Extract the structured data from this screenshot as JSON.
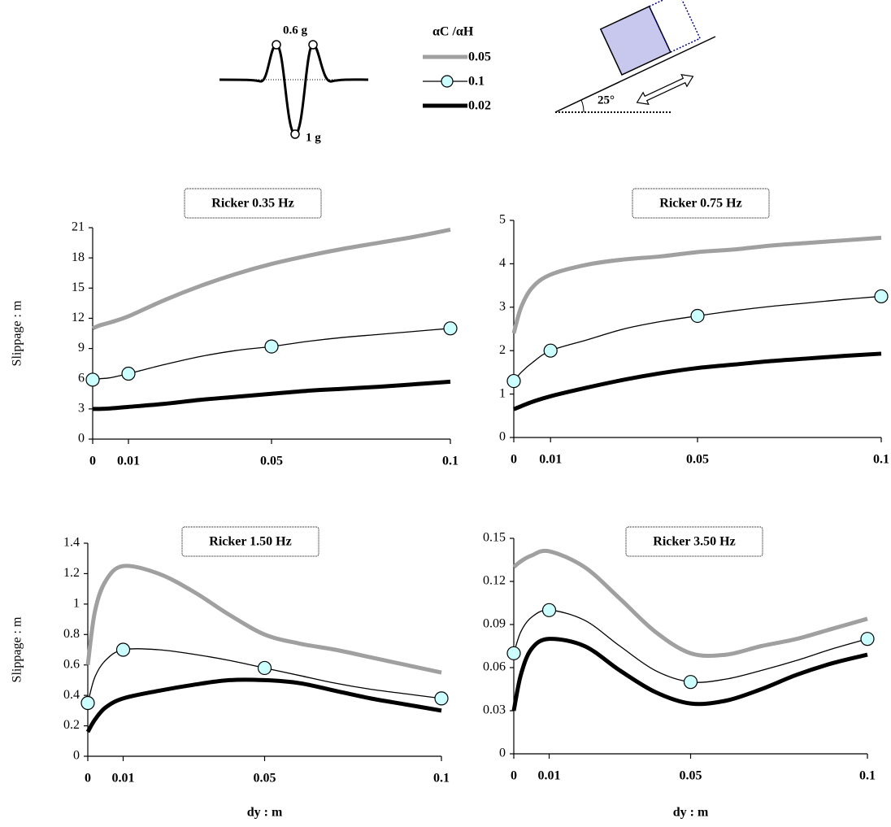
{
  "diagram": {
    "legend_title": "αC /αH",
    "wavelet_peak_label": "0.6 g",
    "wavelet_trough_label": "1 g",
    "slope_angle_label": "25°"
  },
  "chart_data": [
    {
      "type": "line",
      "title": "Ricker  0.35 Hz",
      "ylabel": "Slippage : m",
      "x": [
        0,
        0.002,
        0.005,
        0.01,
        0.02,
        0.03,
        0.04,
        0.05,
        0.06,
        0.07,
        0.08,
        0.09,
        0.1
      ],
      "xlim": [
        0,
        0.1
      ],
      "xticks": [
        0,
        0.01,
        0.05,
        0.1
      ],
      "ylim": [
        0,
        21
      ],
      "yticks": [
        0,
        3,
        6,
        9,
        12,
        15,
        18,
        21
      ],
      "series": [
        {
          "name": "0.05",
          "color": "#a0a0a0",
          "width": 5,
          "values": [
            11,
            11.3,
            11.6,
            12.2,
            13.8,
            15.2,
            16.4,
            17.4,
            18.2,
            18.9,
            19.5,
            20.1,
            20.8
          ]
        },
        {
          "name": "0.1",
          "color": "#000000",
          "width": 1.3,
          "marker": "circle",
          "values": [
            5.9,
            6.0,
            6.1,
            6.5,
            7.4,
            8.2,
            8.8,
            9.2,
            9.7,
            10.1,
            10.4,
            10.7,
            11
          ]
        },
        {
          "name": "0.02",
          "color": "#000000",
          "width": 5,
          "values": [
            3,
            3,
            3.05,
            3.2,
            3.5,
            3.9,
            4.2,
            4.5,
            4.8,
            5.0,
            5.2,
            5.45,
            5.7
          ]
        }
      ]
    },
    {
      "type": "line",
      "title": "Ricker  0.75 Hz",
      "x": [
        0,
        0.002,
        0.005,
        0.01,
        0.02,
        0.03,
        0.04,
        0.05,
        0.06,
        0.07,
        0.08,
        0.09,
        0.1
      ],
      "xlim": [
        0,
        0.1
      ],
      "xticks": [
        0,
        0.01,
        0.05,
        0.1
      ],
      "ylim": [
        0,
        5
      ],
      "yticks": [
        0,
        1,
        2,
        3,
        4,
        5
      ],
      "series": [
        {
          "name": "0.05",
          "color": "#a0a0a0",
          "width": 5,
          "values": [
            2.4,
            3.0,
            3.45,
            3.75,
            3.98,
            4.1,
            4.17,
            4.27,
            4.33,
            4.42,
            4.48,
            4.54,
            4.6
          ]
        },
        {
          "name": "0.1",
          "color": "#000000",
          "width": 1.3,
          "marker": "circle",
          "values": [
            1.3,
            1.5,
            1.72,
            2.0,
            2.25,
            2.5,
            2.67,
            2.8,
            2.92,
            3.02,
            3.1,
            3.18,
            3.25
          ]
        },
        {
          "name": "0.02",
          "color": "#000000",
          "width": 5,
          "values": [
            0.65,
            0.72,
            0.82,
            0.95,
            1.15,
            1.33,
            1.48,
            1.6,
            1.68,
            1.76,
            1.82,
            1.88,
            1.93
          ]
        }
      ]
    },
    {
      "type": "line",
      "title": "Ricker 1.50 Hz",
      "ylabel": "Slippage : m",
      "xlabel": "dy : m",
      "x": [
        0,
        0.002,
        0.005,
        0.01,
        0.02,
        0.03,
        0.04,
        0.05,
        0.06,
        0.07,
        0.08,
        0.09,
        0.1
      ],
      "xlim": [
        0,
        0.1
      ],
      "xticks": [
        0,
        0.01,
        0.05,
        0.1
      ],
      "ylim": [
        0,
        1.4
      ],
      "yticks": [
        0,
        0.2,
        0.4,
        0.6,
        0.8,
        1,
        1.2,
        1.4
      ],
      "series": [
        {
          "name": "0.05",
          "color": "#a0a0a0",
          "width": 5,
          "values": [
            0.6,
            0.95,
            1.15,
            1.25,
            1.2,
            1.08,
            0.93,
            0.8,
            0.74,
            0.7,
            0.65,
            0.6,
            0.55
          ]
        },
        {
          "name": "0.1",
          "color": "#000000",
          "width": 1.3,
          "marker": "circle",
          "values": [
            0.35,
            0.52,
            0.63,
            0.7,
            0.7,
            0.67,
            0.63,
            0.58,
            0.53,
            0.48,
            0.44,
            0.41,
            0.38
          ]
        },
        {
          "name": "0.02",
          "color": "#000000",
          "width": 5,
          "values": [
            0.16,
            0.24,
            0.32,
            0.38,
            0.43,
            0.47,
            0.5,
            0.5,
            0.48,
            0.43,
            0.38,
            0.34,
            0.3
          ]
        }
      ]
    },
    {
      "type": "line",
      "title": "Ricker  3.50 Hz",
      "xlabel": "dy : m",
      "x": [
        0,
        0.002,
        0.005,
        0.01,
        0.02,
        0.03,
        0.04,
        0.05,
        0.06,
        0.07,
        0.08,
        0.09,
        0.1
      ],
      "xlim": [
        0,
        0.1
      ],
      "xticks": [
        0,
        0.01,
        0.05,
        0.1
      ],
      "ylim": [
        0,
        0.15
      ],
      "yticks": [
        0,
        0.03,
        0.06,
        0.09,
        0.12,
        0.15
      ],
      "series": [
        {
          "name": "0.05",
          "color": "#a0a0a0",
          "width": 5,
          "values": [
            0.13,
            0.134,
            0.138,
            0.141,
            0.13,
            0.108,
            0.085,
            0.07,
            0.069,
            0.075,
            0.08,
            0.087,
            0.094
          ]
        },
        {
          "name": "0.1",
          "color": "#000000",
          "width": 1.3,
          "marker": "circle",
          "values": [
            0.07,
            0.085,
            0.095,
            0.1,
            0.093,
            0.075,
            0.058,
            0.05,
            0.052,
            0.058,
            0.065,
            0.073,
            0.08
          ]
        },
        {
          "name": "0.02",
          "color": "#000000",
          "width": 5,
          "values": [
            0.03,
            0.055,
            0.073,
            0.08,
            0.075,
            0.058,
            0.043,
            0.035,
            0.037,
            0.045,
            0.055,
            0.063,
            0.069
          ]
        }
      ]
    }
  ]
}
